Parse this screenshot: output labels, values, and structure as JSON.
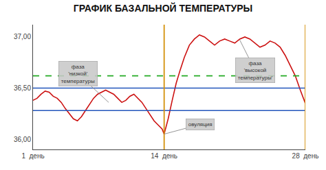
{
  "chart_data": {
    "type": "line",
    "title": "ГРАФИК БАЗАЛЬНОЙ ТЕМПЕРАТУРЫ",
    "x": [
      1.0,
      1.4,
      1.8,
      2.2,
      2.6,
      3.0,
      3.4,
      3.8,
      4.2,
      4.6,
      5.0,
      5.4,
      5.8,
      6.2,
      6.6,
      7.0,
      7.4,
      7.8,
      8.2,
      8.6,
      9.0,
      9.4,
      9.8,
      10.2,
      10.6,
      11.0,
      11.4,
      11.8,
      12.2,
      12.6,
      13.0,
      13.4,
      13.8,
      14.0,
      14.4,
      14.8,
      15.2,
      15.6,
      16.0,
      16.5,
      17.0,
      17.5,
      18.0,
      18.5,
      19.0,
      19.5,
      20.0,
      20.5,
      21.0,
      21.5,
      22.0,
      22.5,
      23.0,
      23.5,
      24.0,
      24.5,
      25.0,
      25.5,
      26.0,
      26.5,
      27.0,
      27.5,
      28.0
    ],
    "values": [
      36.38,
      36.4,
      36.44,
      36.47,
      36.46,
      36.42,
      36.4,
      36.36,
      36.3,
      36.25,
      36.2,
      36.18,
      36.22,
      36.28,
      36.34,
      36.4,
      36.44,
      36.46,
      36.48,
      36.46,
      36.44,
      36.4,
      36.36,
      36.38,
      36.42,
      36.44,
      36.4,
      36.36,
      36.3,
      36.24,
      36.18,
      36.14,
      36.1,
      36.05,
      36.2,
      36.38,
      36.55,
      36.68,
      36.8,
      36.92,
      36.98,
      37.02,
      37.0,
      36.96,
      36.92,
      36.96,
      36.98,
      36.96,
      36.94,
      36.98,
      37.0,
      36.98,
      36.94,
      36.9,
      36.92,
      36.96,
      36.94,
      36.9,
      36.82,
      36.72,
      36.62,
      36.48,
      36.35
    ],
    "color": "#cc1111",
    "xlim": [
      1,
      28
    ],
    "ylim": [
      35.9,
      37.12
    ],
    "xticks": [
      {
        "value": 1,
        "label": "1  день"
      },
      {
        "value": 14,
        "label": "14  день"
      },
      {
        "value": 28,
        "label": "28  день"
      }
    ],
    "yticks": [
      {
        "value": 36.0,
        "label": "36,00"
      },
      {
        "value": 36.5,
        "label": "36,50"
      },
      {
        "value": 37.0,
        "label": "37,00"
      }
    ],
    "hlines": [
      {
        "y": 36.5,
        "color": "#2255bb",
        "line_style": "solid"
      },
      {
        "y": 36.28,
        "color": "#2255bb",
        "line_style": "solid"
      },
      {
        "y": 36.62,
        "color": "#22aa22",
        "line_style": "dashed"
      }
    ],
    "vlines": [
      {
        "x": 14,
        "color": "#d4900a",
        "line_style": "solid"
      },
      {
        "x": 28,
        "color": "#d4900a",
        "line_style": "solid"
      }
    ],
    "annotations": [
      {
        "text": "фаза\n'низкой'\nтемпературы",
        "x": 8.5,
        "y": 36.36
      },
      {
        "text": "овуляция",
        "x": 14.0,
        "y": 36.05
      },
      {
        "text": "фаза\n'высокой\nтемпературы'",
        "x": 21.5,
        "y": 36.97
      }
    ],
    "grid": false
  }
}
